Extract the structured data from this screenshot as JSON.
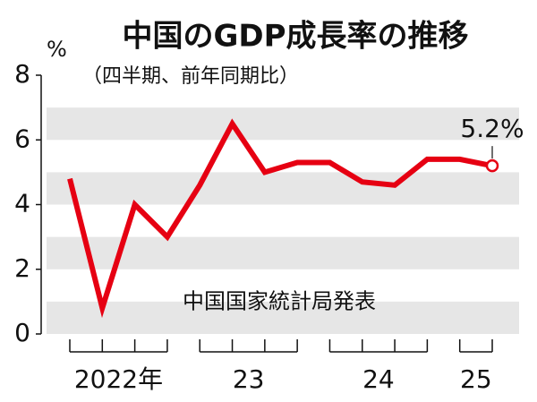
{
  "chart_data": {
    "type": "line",
    "title": "中国のGDP成長率の推移",
    "subtitle": "（四半期、前年同期比）",
    "y_unit": "%",
    "source": "中国国家統計局発表",
    "categories": [
      null,
      null,
      null,
      null,
      null,
      null,
      null,
      null,
      null,
      null,
      null,
      null,
      null,
      null
    ],
    "year_labels": [
      "2022年",
      "23",
      "24",
      "25"
    ],
    "series": [
      {
        "color": "#e60012",
        "values": [
          4.8,
          0.8,
          4.0,
          3.0,
          4.6,
          6.5,
          5.0,
          5.3,
          5.3,
          4.7,
          4.6,
          5.4,
          5.4,
          5.2
        ],
        "value_labels": [
          null,
          null,
          null,
          null,
          null,
          null,
          null,
          null,
          null,
          null,
          null,
          null,
          null,
          "5.2%"
        ]
      }
    ],
    "ylim": [
      0,
      8
    ],
    "yticks": [
      0,
      2,
      4,
      6,
      8
    ],
    "stripes": true
  }
}
